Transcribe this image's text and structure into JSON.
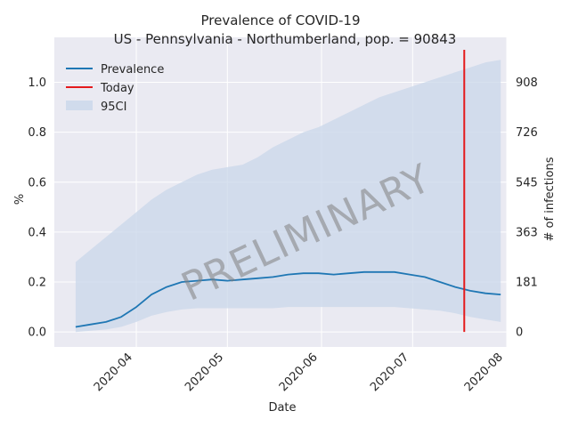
{
  "chart_data": {
    "type": "line",
    "title": "Prevalence of COVID-19",
    "subtitle": "US - Pennsylvania - Northumberland, pop. = 90843",
    "xlabel": "Date",
    "ylabel": "%",
    "y2label": "# of infections",
    "watermark": "PRELIMINARY",
    "xlim": [
      "2020-03-05",
      "2020-08-01"
    ],
    "ylim": [
      -0.06,
      1.18
    ],
    "x_ticks": [
      "2020-04-01",
      "2020-05-01",
      "2020-06-01",
      "2020-07-01",
      "2020-08-01"
    ],
    "x_tick_labels": [
      "2020-04",
      "2020-05",
      "2020-06",
      "2020-07",
      "2020-08"
    ],
    "y_ticks": [
      0.0,
      0.2,
      0.4,
      0.6,
      0.8,
      1.0
    ],
    "y_tick_labels": [
      "0.0",
      "0.2",
      "0.4",
      "0.6",
      "0.8",
      "1.0"
    ],
    "y2_tick_labels": [
      "0",
      "181",
      "363",
      "545",
      "726",
      "908"
    ],
    "grid": true,
    "legend_position": "top-left",
    "colors": {
      "prevalence": "#1f77b4",
      "today": "#e41a1c",
      "ci": "#c9d7ea",
      "plot_bg": "#eaeaf2",
      "grid": "#ffffff"
    },
    "legend": [
      {
        "label": "Prevalence",
        "kind": "line",
        "color": "#1f77b4"
      },
      {
        "label": "Today",
        "kind": "line",
        "color": "#e41a1c"
      },
      {
        "label": "95CI",
        "kind": "patch",
        "color": "#c9d7ea"
      }
    ],
    "today": {
      "date": "2020-07-18",
      "y_range": [
        0.0,
        1.13
      ]
    },
    "series": [
      {
        "name": "Prevalence",
        "x": [
          "2020-03-12",
          "2020-03-17",
          "2020-03-22",
          "2020-03-27",
          "2020-04-01",
          "2020-04-06",
          "2020-04-11",
          "2020-04-16",
          "2020-04-21",
          "2020-04-26",
          "2020-05-01",
          "2020-05-06",
          "2020-05-11",
          "2020-05-16",
          "2020-05-21",
          "2020-05-26",
          "2020-05-31",
          "2020-06-05",
          "2020-06-10",
          "2020-06-15",
          "2020-06-20",
          "2020-06-25",
          "2020-06-30",
          "2020-07-05",
          "2020-07-10",
          "2020-07-15",
          "2020-07-20",
          "2020-07-25",
          "2020-07-30"
        ],
        "values": [
          0.02,
          0.03,
          0.04,
          0.06,
          0.1,
          0.15,
          0.18,
          0.2,
          0.205,
          0.21,
          0.205,
          0.21,
          0.215,
          0.22,
          0.23,
          0.235,
          0.235,
          0.23,
          0.235,
          0.24,
          0.24,
          0.24,
          0.23,
          0.22,
          0.2,
          0.18,
          0.165,
          0.155,
          0.15
        ],
        "ci_low": [
          0.0,
          0.005,
          0.01,
          0.02,
          0.04,
          0.065,
          0.08,
          0.09,
          0.095,
          0.095,
          0.095,
          0.095,
          0.095,
          0.095,
          0.1,
          0.1,
          0.1,
          0.1,
          0.1,
          0.1,
          0.1,
          0.1,
          0.095,
          0.09,
          0.085,
          0.075,
          0.06,
          0.05,
          0.04
        ],
        "ci_high": [
          0.28,
          0.33,
          0.38,
          0.43,
          0.48,
          0.53,
          0.57,
          0.6,
          0.63,
          0.65,
          0.66,
          0.67,
          0.7,
          0.74,
          0.77,
          0.8,
          0.82,
          0.85,
          0.88,
          0.91,
          0.94,
          0.96,
          0.98,
          1.0,
          1.02,
          1.04,
          1.06,
          1.08,
          1.09
        ]
      }
    ]
  }
}
